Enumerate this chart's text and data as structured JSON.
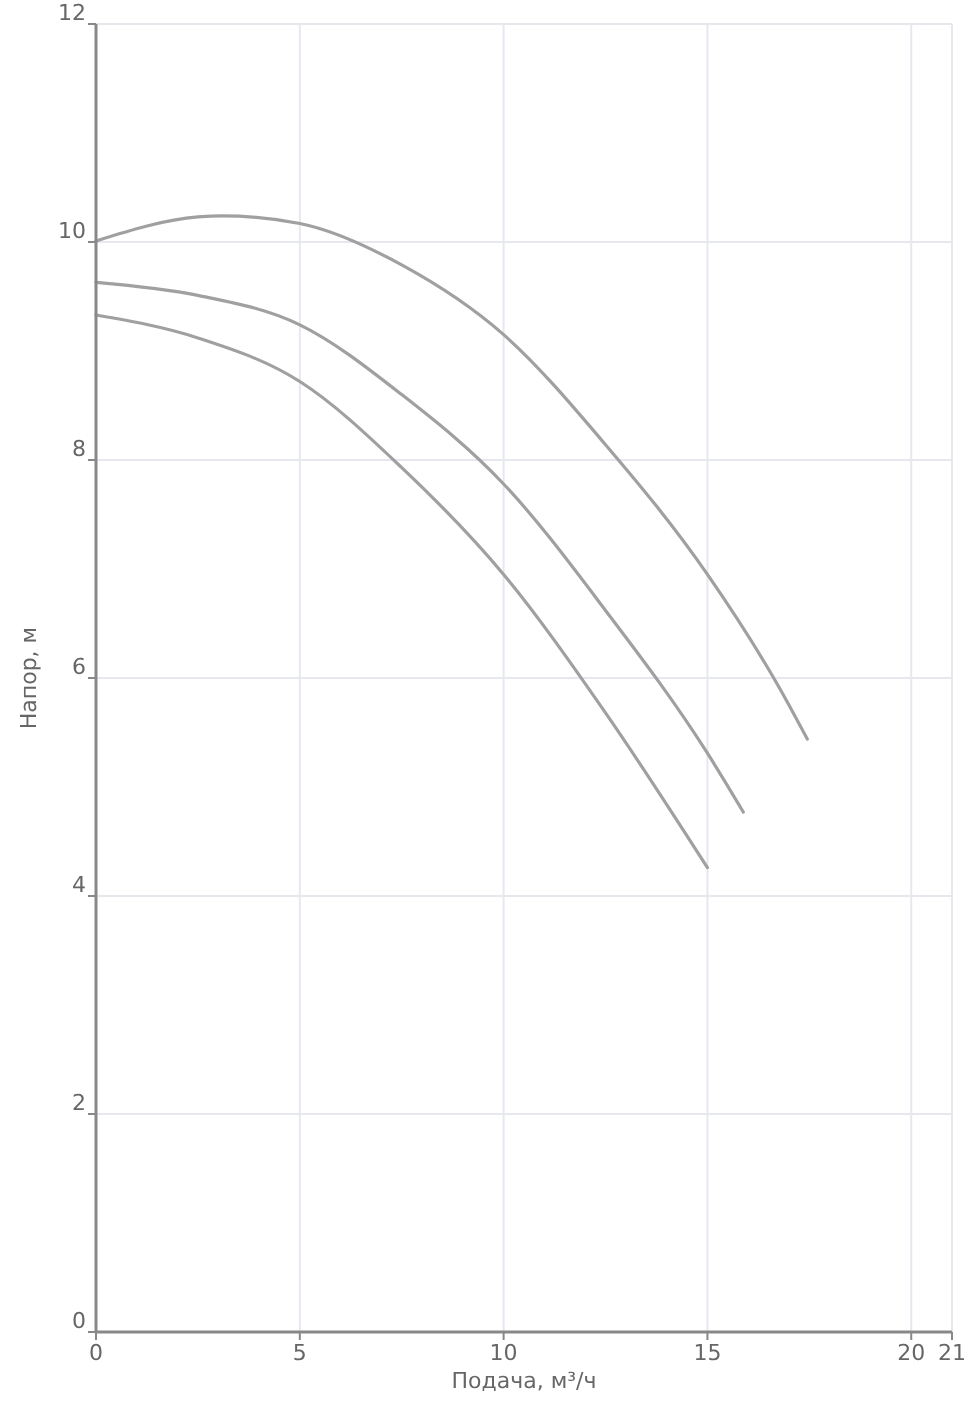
{
  "chart_data": {
    "type": "line",
    "xlabel": "Подача, м³/ч",
    "ylabel": "Напор, м",
    "xlim": [
      0,
      21
    ],
    "xticks": [
      0,
      5,
      10,
      15,
      20,
      21
    ],
    "ylim": [
      0,
      12
    ],
    "yticks": [
      0,
      2,
      4,
      6,
      8,
      10,
      12
    ],
    "grid": true,
    "marker": "none",
    "line_style": "solid",
    "series": [
      {
        "color": "#a0a0a0",
        "x": [
          0,
          2.5,
          3.1,
          5,
          7.5,
          10,
          12.5,
          15,
          16.75,
          17.45
        ],
        "values": [
          10.01,
          10.23,
          10.24,
          10.17,
          9.79,
          9.15,
          8.14,
          6.95,
          5.92,
          5.44
        ]
      },
      {
        "color": "#a0a0a0",
        "x": [
          0,
          2.5,
          5,
          7.5,
          10,
          12.5,
          15,
          15.88
        ],
        "values": [
          9.63,
          9.51,
          9.24,
          8.6,
          7.78,
          6.62,
          5.31,
          4.77
        ]
      },
      {
        "color": "#a0a0a0",
        "x": [
          0,
          2.5,
          5,
          7.5,
          10,
          12.5,
          15
        ],
        "values": [
          9.33,
          9.12,
          8.72,
          7.93,
          6.95,
          5.68,
          4.26
        ]
      }
    ]
  }
}
